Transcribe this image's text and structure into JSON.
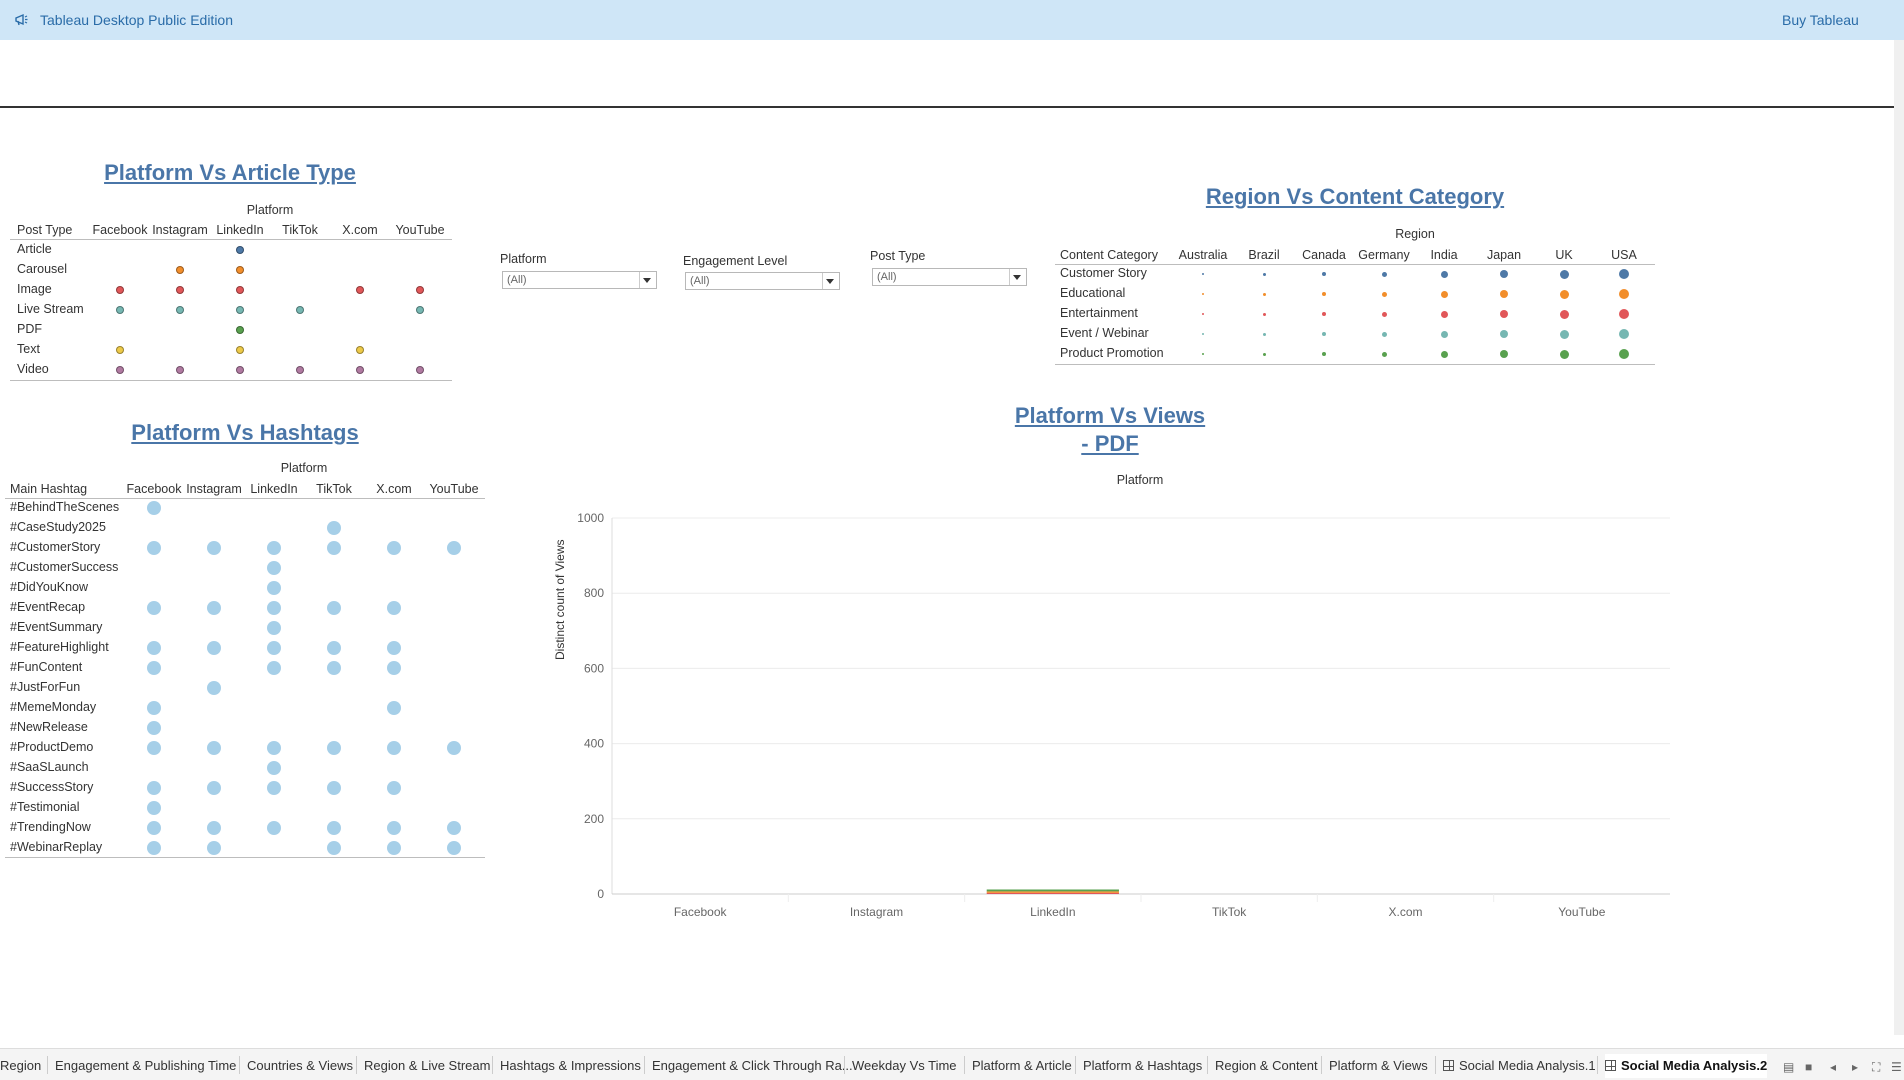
{
  "app": {
    "title": "Tableau Desktop Public Edition",
    "buy_label": "Buy Tableau"
  },
  "sheet1": {
    "title": "Platform Vs Article Type",
    "column_header": "Platform",
    "row_header": "Post Type",
    "columns": [
      "Facebook",
      "Instagram",
      "LinkedIn",
      "TikTok",
      "X.com",
      "YouTube"
    ],
    "rows": [
      {
        "label": "Article",
        "color": "#4e79a7",
        "cols": [
          2
        ]
      },
      {
        "label": "Carousel",
        "color": "#f28e2b",
        "cols": [
          1,
          2
        ]
      },
      {
        "label": "Image",
        "color": "#e15759",
        "cols": [
          0,
          1,
          2,
          4,
          5
        ]
      },
      {
        "label": "Live Stream",
        "color": "#76b7b2",
        "cols": [
          0,
          1,
          2,
          3,
          5
        ]
      },
      {
        "label": "PDF",
        "color": "#59a14f",
        "cols": [
          2
        ]
      },
      {
        "label": "Text",
        "color": "#edc948",
        "cols": [
          0,
          2,
          4
        ]
      },
      {
        "label": "Video",
        "color": "#b07aa1",
        "cols": [
          0,
          1,
          2,
          3,
          4,
          5
        ]
      }
    ]
  },
  "filters": [
    {
      "label": "Platform",
      "value": "(All)"
    },
    {
      "label": "Engagement Level",
      "value": "(All)"
    },
    {
      "label": "Post Type",
      "value": "(All)"
    }
  ],
  "sheet2": {
    "title": "Region Vs Content Category",
    "column_header": "Region",
    "row_header": "Content Category",
    "columns": [
      "Australia",
      "Brazil",
      "Canada",
      "Germany",
      "India",
      "Japan",
      "UK",
      "USA"
    ],
    "rows": [
      {
        "label": "Customer Story",
        "color": "#4e79a7"
      },
      {
        "label": "Educational",
        "color": "#f28e2b"
      },
      {
        "label": "Entertainment",
        "color": "#e15759"
      },
      {
        "label": "Event / Webinar",
        "color": "#76b7b2"
      },
      {
        "label": "Product Promotion",
        "color": "#59a14f"
      }
    ]
  },
  "sheet3": {
    "title": "Platform Vs Hashtags",
    "column_header": "Platform",
    "row_header": "Main Hashtag",
    "columns": [
      "Facebook",
      "Instagram",
      "LinkedIn",
      "TikTok",
      "X.com",
      "YouTube"
    ],
    "color": "#a6cfe8",
    "rows": [
      {
        "label": "#BehindTheScenes",
        "cols": [
          0
        ]
      },
      {
        "label": "#CaseStudy2025",
        "cols": [
          3
        ]
      },
      {
        "label": "#CustomerStory",
        "cols": [
          0,
          1,
          2,
          3,
          4,
          5
        ]
      },
      {
        "label": "#CustomerSuccess",
        "cols": [
          2
        ]
      },
      {
        "label": "#DidYouKnow",
        "cols": [
          2
        ]
      },
      {
        "label": "#EventRecap",
        "cols": [
          0,
          1,
          2,
          3,
          4
        ]
      },
      {
        "label": "#EventSummary",
        "cols": [
          2
        ]
      },
      {
        "label": "#FeatureHighlight",
        "cols": [
          0,
          1,
          2,
          3,
          4
        ]
      },
      {
        "label": "#FunContent",
        "cols": [
          0,
          2,
          3,
          4
        ]
      },
      {
        "label": "#JustForFun",
        "cols": [
          1
        ]
      },
      {
        "label": "#MemeMonday",
        "cols": [
          0,
          4
        ]
      },
      {
        "label": "#NewRelease",
        "cols": [
          0
        ]
      },
      {
        "label": "#ProductDemo",
        "cols": [
          0,
          1,
          2,
          3,
          4,
          5
        ]
      },
      {
        "label": "#SaaSLaunch",
        "cols": [
          2
        ]
      },
      {
        "label": "#SuccessStory",
        "cols": [
          0,
          1,
          2,
          3,
          4
        ]
      },
      {
        "label": "#Testimonial",
        "cols": [
          0
        ]
      },
      {
        "label": "#TrendingNow",
        "cols": [
          0,
          1,
          2,
          3,
          4,
          5
        ]
      },
      {
        "label": "#WebinarReplay",
        "cols": [
          0,
          1,
          3,
          4,
          5
        ]
      }
    ]
  },
  "chart_data": {
    "type": "bar",
    "title_line1": "Platform Vs Views",
    "title_line2": "- PDF",
    "column_header": "Platform",
    "ylabel": "Distinct count of Views",
    "categories": [
      "Facebook",
      "Instagram",
      "LinkedIn",
      "TikTok",
      "X.com",
      "YouTube"
    ],
    "ylim": [
      0,
      1000
    ],
    "yticks": [
      0,
      200,
      400,
      600,
      800,
      1000
    ],
    "stack_colors": [
      "#e15759",
      "#f28e2b",
      "#59a14f"
    ],
    "series": [
      {
        "values": [
          0,
          0,
          3,
          0,
          0,
          0
        ]
      },
      {
        "values": [
          0,
          0,
          4,
          0,
          0,
          0
        ]
      },
      {
        "values": [
          0,
          0,
          5,
          0,
          0,
          0
        ]
      }
    ],
    "grid": true
  },
  "tabs": [
    {
      "label": "Region"
    },
    {
      "label": "Engagement & Publishing Time"
    },
    {
      "label": "Countries & Views"
    },
    {
      "label": "Region & Live Stream"
    },
    {
      "label": "Hashtags & Impressions"
    },
    {
      "label": "Engagement & Click Through Ra..."
    },
    {
      "label": "Weekday Vs Time"
    },
    {
      "label": "Platform & Article"
    },
    {
      "label": "Platform & Hashtags"
    },
    {
      "label": "Region & Content"
    },
    {
      "label": "Platform & Views"
    },
    {
      "label": "Social Media Analysis.1",
      "icon": "dashboard-icon"
    },
    {
      "label": "Social Media Analysis.2",
      "icon": "dashboard-icon",
      "active": true
    }
  ]
}
